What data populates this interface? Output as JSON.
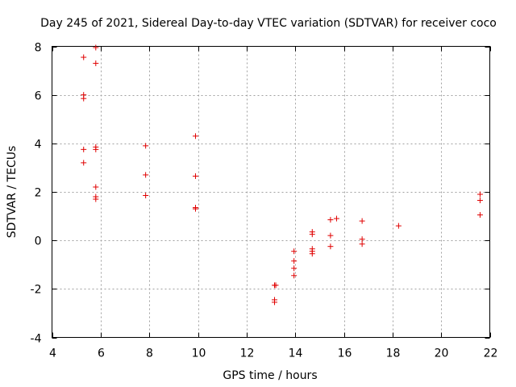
{
  "chart_data": {
    "type": "scatter",
    "title": "Day 245 of 2021, Sidereal Day-to-day VTEC variation (SDTVAR) for receiver coco",
    "xlabel": "GPS time / hours",
    "ylabel": "SDTVAR / TECUs",
    "xlim": [
      4,
      22
    ],
    "ylim": [
      -4,
      8
    ],
    "xticks": [
      4,
      6,
      8,
      10,
      12,
      14,
      16,
      18,
      20,
      22
    ],
    "yticks": [
      -4,
      -2,
      0,
      2,
      4,
      6,
      8
    ],
    "grid": true,
    "color": "#e00000",
    "series": [
      {
        "name": "SDTVAR",
        "x": [
          5.3,
          5.3,
          5.3,
          5.3,
          5.3,
          5.8,
          5.8,
          5.8,
          5.8,
          5.8,
          5.8,
          5.8,
          7.85,
          7.85,
          7.85,
          9.9,
          9.9,
          9.9,
          9.9,
          13.15,
          13.2,
          13.15,
          13.15,
          13.95,
          13.95,
          13.95,
          13.95,
          14.7,
          14.7,
          14.7,
          14.7,
          14.7,
          15.45,
          15.45,
          15.45,
          15.7,
          16.75,
          16.75,
          16.75,
          18.25,
          21.6,
          21.6,
          21.6
        ],
        "y": [
          7.55,
          6.0,
          5.85,
          3.75,
          3.2,
          7.95,
          7.3,
          3.85,
          3.75,
          2.2,
          1.8,
          1.7,
          3.9,
          2.7,
          1.85,
          4.3,
          2.65,
          1.35,
          1.3,
          -1.85,
          -1.85,
          -2.45,
          -2.55,
          -0.45,
          -0.85,
          -1.15,
          -1.45,
          0.35,
          0.25,
          -0.35,
          -0.45,
          -0.55,
          0.85,
          0.2,
          -0.25,
          0.9,
          0.8,
          0.05,
          -0.15,
          0.6,
          1.9,
          1.65,
          1.05
        ]
      }
    ]
  }
}
